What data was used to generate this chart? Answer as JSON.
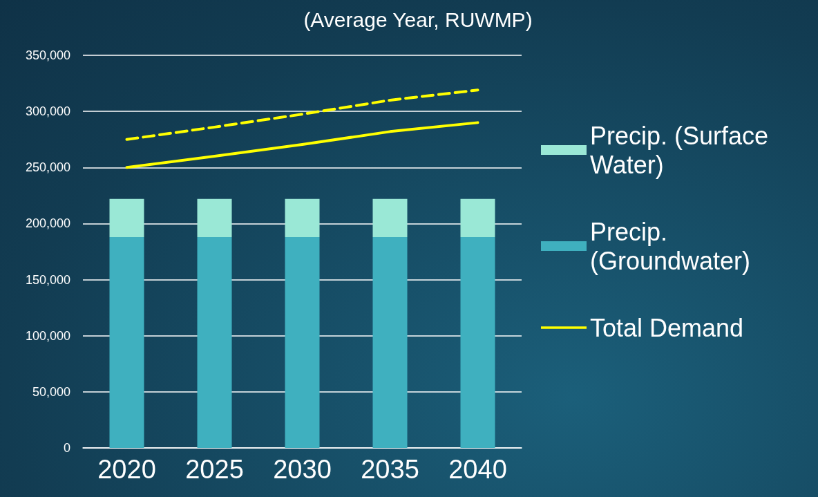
{
  "chart_data": {
    "type": "bar",
    "title": "(Average Year, RUWMP)",
    "categories": [
      "2020",
      "2025",
      "2030",
      "2035",
      "2040"
    ],
    "stacked": true,
    "series": [
      {
        "name": "Precip. (Groundwater)",
        "color": "#3fb0bf",
        "values": [
          188000,
          188000,
          188000,
          188000,
          188000
        ]
      },
      {
        "name": "Precip. (Surface Water)",
        "color": "#9ae8d6",
        "values": [
          34000,
          34000,
          34000,
          34000,
          34000
        ]
      },
      {
        "name": "Total Demand",
        "type": "line",
        "color": "#ffff00",
        "line_style": "solid",
        "values": [
          250000,
          260000,
          270500,
          282000,
          290000
        ]
      },
      {
        "type": "line",
        "color": "#ffff00",
        "line_style": "dashed",
        "values": [
          275000,
          286000,
          297500,
          310000,
          319000
        ]
      }
    ],
    "ylim": [
      0,
      350000
    ],
    "yticks": [
      0,
      {
        "value": 50000,
        "label": "50,000"
      },
      {
        "value": 100000,
        "label": "100,000"
      },
      {
        "value": 150000,
        "label": "150,000"
      },
      {
        "value": 200000,
        "label": "200,000"
      },
      {
        "value": 250000,
        "label": "250,000"
      },
      {
        "value": 300000,
        "label": "300,000"
      },
      {
        "value": 350000,
        "label": "350,000"
      }
    ],
    "grid": "y",
    "legend": "right",
    "marker": "none"
  }
}
